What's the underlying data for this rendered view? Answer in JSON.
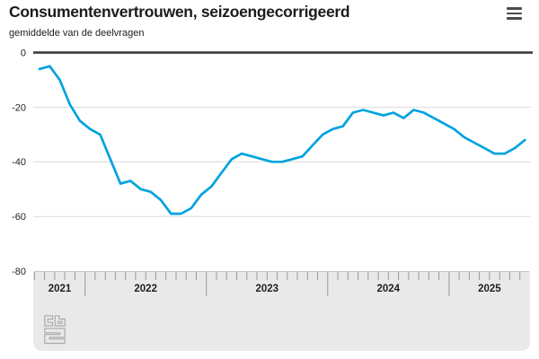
{
  "header": {
    "title": "Consumentenvertrouwen, seizoengecorrigeerd",
    "subtitle": "gemiddelde van de deelvragen",
    "menu_icon": "hamburger-menu"
  },
  "colors": {
    "line": "#00a2e0",
    "zero_axis": "#3d3d3d",
    "gridline": "#dcdcdc",
    "panel_bg": "#e9e9e9",
    "panel_border": "#c6c6c6",
    "tick": "#999999",
    "label": "#1f1f1f",
    "logo": "#ababab"
  },
  "chart_data": {
    "type": "line",
    "title": "Consumentenvertrouwen, seizoengecorrigeerd",
    "subtitle": "gemiddelde van de deelvragen",
    "legend": "none",
    "grid": "horizontal",
    "ylim": [
      -80,
      0
    ],
    "yticks": [
      0,
      -20,
      -40,
      -60,
      -80
    ],
    "x_years": [
      "2021",
      "2022",
      "2023",
      "2024",
      "2025"
    ],
    "categories": [
      "2021-08",
      "2021-09",
      "2021-10",
      "2021-11",
      "2021-12",
      "2022-01",
      "2022-02",
      "2022-03",
      "2022-04",
      "2022-05",
      "2022-06",
      "2022-07",
      "2022-08",
      "2022-09",
      "2022-10",
      "2022-11",
      "2022-12",
      "2023-01",
      "2023-02",
      "2023-03",
      "2023-04",
      "2023-05",
      "2023-06",
      "2023-07",
      "2023-08",
      "2023-09",
      "2023-10",
      "2023-11",
      "2023-12",
      "2024-01",
      "2024-02",
      "2024-03",
      "2024-04",
      "2024-05",
      "2024-06",
      "2024-07",
      "2024-08",
      "2024-09",
      "2024-10",
      "2024-11",
      "2024-12",
      "2025-01",
      "2025-02",
      "2025-03",
      "2025-04",
      "2025-05",
      "2025-06",
      "2025-07",
      "2025-08"
    ],
    "values": [
      -6,
      -5,
      -10,
      -19,
      -25,
      -28,
      -30,
      -39,
      -48,
      -47,
      -50,
      -51,
      -54,
      -59,
      -59,
      -57,
      -52,
      -49,
      -44,
      -39,
      -37,
      -38,
      -39,
      -40,
      -40,
      -39,
      -38,
      -34,
      -30,
      -28,
      -27,
      -22,
      -21,
      -22,
      -23,
      -22,
      -24,
      -21,
      -22,
      -24,
      -26,
      -28,
      -31,
      -33,
      -35,
      -37,
      -37,
      -35,
      -32
    ]
  }
}
